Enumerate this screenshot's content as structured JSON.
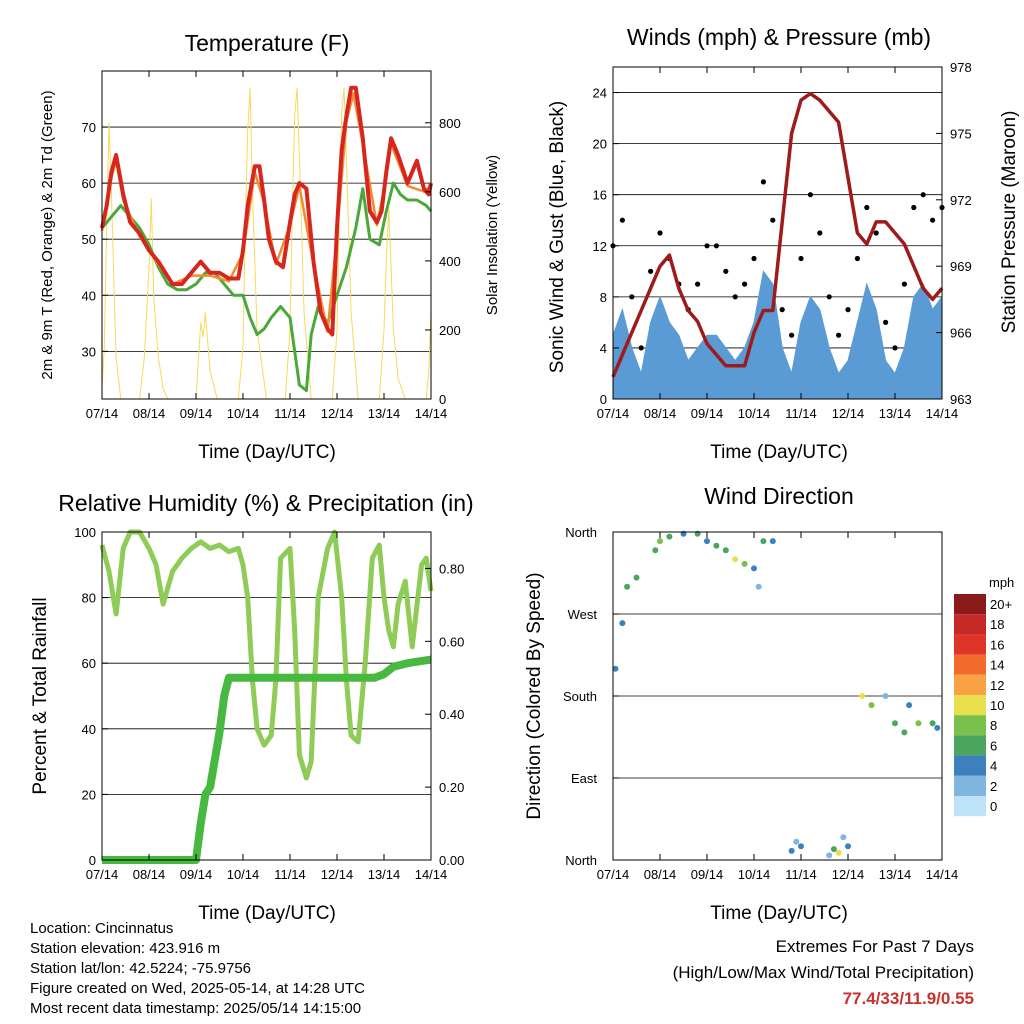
{
  "panels": {
    "temperature": {
      "title": "Temperature (F)",
      "xlabel": "Time (Day/UTC)",
      "ylabel_left": "2m & 9m T (Red, Orange) & 2m Td (Green)",
      "ylabel_right": "Solar Insolation (Yellow)"
    },
    "winds": {
      "title": "Winds (mph) & Pressure (mb)",
      "xlabel": "Time (Day/UTC)",
      "ylabel_left": "Sonic Wind & Gust (Blue, Black)",
      "ylabel_right": "Station Pressure (Maroon)"
    },
    "humidity": {
      "title": "Relative Humidity (%) & Precipitation (in)",
      "xlabel": "Time (Day/UTC)",
      "ylabel_left": "Percent & Total Rainfall"
    },
    "direction": {
      "title": "Wind Direction",
      "xlabel": "Time (Day/UTC)",
      "ylabel_left": "Direction (Colored By Speed)",
      "legend_title": "mph"
    }
  },
  "footer": {
    "location": "Location: Cincinnatus",
    "elevation": "Station elevation: 423.916 m",
    "latlon": "Station lat/lon: 42.5224; -75.9756",
    "created": "Figure created on Wed, 2025-05-14, at 14:28 UTC",
    "recent": "Most recent data timestamp: 2025/05/14 14:15:00",
    "extremes_title": "Extremes For Past 7 Days",
    "extremes_subtitle": "(High/Low/Max Wind/Total Precipitation)",
    "extremes_values": "77.4/33/11.9/0.55"
  },
  "chart_data": [
    {
      "type": "line",
      "title": "Temperature (F)",
      "xlabel": "Time (Day/UTC)",
      "ylabel": "2m & 9m T (Red, Orange) & 2m Td (Green)",
      "y2label": "Solar Insolation (Yellow)",
      "x_ticks": [
        "07/14",
        "08/14",
        "09/14",
        "10/14",
        "11/14",
        "12/14",
        "13/14",
        "14/14"
      ],
      "xlim": [
        0,
        7
      ],
      "ylim": [
        21.5,
        80
      ],
      "y_ticks": [
        30,
        40,
        50,
        60,
        70
      ],
      "y2lim": [
        0,
        950
      ],
      "y2_ticks": [
        0,
        200,
        400,
        600,
        800
      ],
      "grid": true,
      "series": [
        {
          "name": "2m T",
          "color": "#d7261e",
          "axis": "left",
          "x": [
            0,
            0.1,
            0.2,
            0.3,
            0.45,
            0.6,
            0.8,
            1.0,
            1.2,
            1.35,
            1.5,
            1.7,
            1.9,
            2.1,
            2.3,
            2.5,
            2.7,
            2.9,
            3.0,
            3.1,
            3.25,
            3.35,
            3.45,
            3.55,
            3.7,
            3.85,
            4.0,
            4.1,
            4.2,
            4.35,
            4.5,
            4.65,
            4.8,
            4.9,
            5.0,
            5.1,
            5.2,
            5.3,
            5.4,
            5.55,
            5.7,
            5.85,
            5.95,
            6.05,
            6.15,
            6.3,
            6.5,
            6.7,
            6.85,
            6.95,
            7.0
          ],
          "y": [
            52,
            56,
            62,
            65,
            58,
            53,
            51,
            48,
            46,
            44,
            42,
            42,
            44,
            46,
            44,
            44,
            43,
            43,
            48,
            56,
            63,
            63,
            57,
            50,
            46,
            45,
            53,
            58,
            60,
            59,
            46,
            37,
            34,
            33,
            52,
            66,
            72,
            77,
            77,
            68,
            55,
            53,
            55,
            62,
            68,
            65,
            60,
            64,
            59,
            58,
            60
          ]
        },
        {
          "name": "9m T",
          "color": "#f28a2e",
          "axis": "left",
          "x": [
            0,
            0.2,
            0.3,
            0.45,
            0.8,
            1.2,
            1.5,
            1.9,
            2.3,
            2.7,
            3.0,
            3.25,
            3.45,
            3.7,
            4.0,
            4.2,
            4.5,
            4.8,
            5.0,
            5.2,
            5.35,
            5.55,
            5.85,
            6.05,
            6.15,
            6.5,
            6.85,
            7.0
          ],
          "y": [
            51.5,
            61,
            64,
            57,
            50.5,
            45.5,
            42,
            43.5,
            43.5,
            42.5,
            47.5,
            62,
            56.5,
            45.5,
            52.5,
            59.5,
            45.5,
            33.5,
            51,
            71,
            76,
            67,
            52.5,
            61,
            67,
            59.5,
            58.5,
            59.5
          ]
        },
        {
          "name": "2m Td",
          "color": "#4aa83a",
          "axis": "left",
          "x": [
            0,
            0.2,
            0.4,
            0.6,
            0.8,
            1.0,
            1.2,
            1.4,
            1.6,
            1.8,
            2.0,
            2.2,
            2.4,
            2.6,
            2.8,
            3.0,
            3.15,
            3.3,
            3.45,
            3.6,
            3.8,
            4.0,
            4.1,
            4.2,
            4.35,
            4.45,
            4.6,
            4.8,
            5.0,
            5.2,
            5.4,
            5.55,
            5.7,
            5.9,
            6.05,
            6.2,
            6.35,
            6.5,
            6.7,
            6.9,
            7.0
          ],
          "y": [
            52,
            54,
            56,
            54,
            52,
            49,
            45,
            42,
            41,
            41,
            42,
            44,
            44,
            42,
            40,
            40,
            36,
            33,
            34,
            36,
            38,
            36,
            30,
            24,
            23,
            33,
            38,
            35,
            40,
            45,
            52,
            59,
            50,
            49,
            55,
            60,
            58,
            57,
            57,
            56,
            55
          ]
        },
        {
          "name": "Solar Insolation",
          "color": "#f5d95a",
          "axis": "right",
          "x": [
            0,
            0.05,
            0.1,
            0.15,
            0.2,
            0.25,
            0.3,
            0.4,
            0.5,
            0.6,
            0.8,
            0.9,
            1.0,
            1.05,
            1.1,
            1.15,
            1.2,
            1.3,
            1.4,
            1.55,
            1.8,
            2.0,
            2.1,
            2.15,
            2.2,
            2.3,
            2.45,
            2.9,
            3.0,
            3.05,
            3.1,
            3.15,
            3.2,
            3.3,
            3.5,
            3.9,
            4.0,
            4.05,
            4.1,
            4.15,
            4.2,
            4.3,
            4.45,
            4.9,
            5.0,
            5.05,
            5.1,
            5.15,
            5.2,
            5.3,
            5.45,
            5.9,
            6.0,
            6.05,
            6.1,
            6.15,
            6.2,
            6.3,
            6.45,
            6.9,
            6.95,
            7.0
          ],
          "y": [
            30,
            150,
            500,
            800,
            600,
            350,
            120,
            0,
            0,
            0,
            0,
            120,
            380,
            580,
            300,
            200,
            120,
            30,
            0,
            0,
            0,
            0,
            220,
            180,
            250,
            80,
            0,
            0,
            150,
            500,
            780,
            900,
            600,
            200,
            0,
            0,
            200,
            550,
            820,
            900,
            700,
            250,
            0,
            0,
            200,
            550,
            830,
            900,
            700,
            250,
            0,
            0,
            200,
            400,
            550,
            380,
            200,
            60,
            0,
            0,
            80,
            250
          ]
        }
      ]
    },
    {
      "type": "line",
      "title": "Winds (mph) & Pressure (mb)",
      "xlabel": "Time (Day/UTC)",
      "ylabel": "Sonic Wind & Gust (Blue, Black)",
      "y2label": "Station Pressure (Maroon)",
      "x_ticks": [
        "07/14",
        "08/14",
        "09/14",
        "10/14",
        "11/14",
        "12/14",
        "13/14",
        "14/14"
      ],
      "xlim": [
        0,
        7
      ],
      "ylim": [
        0,
        26
      ],
      "y_ticks": [
        0,
        4,
        8,
        12,
        16,
        20,
        24
      ],
      "y2lim": [
        963,
        978
      ],
      "y2_ticks": [
        963,
        966,
        969,
        972,
        975,
        978
      ],
      "grid": true,
      "series": [
        {
          "name": "Sonic Wind",
          "color": "#5b9bd5",
          "axis": "left",
          "x": [
            0,
            0.2,
            0.4,
            0.6,
            0.8,
            1.0,
            1.2,
            1.4,
            1.6,
            1.8,
            2.0,
            2.2,
            2.4,
            2.6,
            2.8,
            3.0,
            3.2,
            3.4,
            3.6,
            3.8,
            4.0,
            4.2,
            4.4,
            4.6,
            4.8,
            5.0,
            5.2,
            5.4,
            5.6,
            5.8,
            6.0,
            6.2,
            6.4,
            6.6,
            6.8,
            7.0
          ],
          "y": [
            5,
            7,
            4,
            2,
            6,
            8,
            6,
            5,
            3,
            4,
            5,
            5,
            4,
            3,
            4,
            6,
            10,
            9,
            4,
            2,
            6,
            8,
            7,
            4,
            2,
            3,
            6,
            9,
            7,
            3,
            2,
            4,
            8,
            9,
            7,
            8
          ]
        },
        {
          "name": "Gust",
          "color": "#000000",
          "axis": "left",
          "x": [
            0,
            0.2,
            0.4,
            0.6,
            0.8,
            1.0,
            1.2,
            1.4,
            1.6,
            1.8,
            2.0,
            2.2,
            2.4,
            2.6,
            2.8,
            3.0,
            3.2,
            3.4,
            3.6,
            3.8,
            4.0,
            4.2,
            4.4,
            4.6,
            4.8,
            5.0,
            5.2,
            5.4,
            5.6,
            5.8,
            6.0,
            6.2,
            6.4,
            6.6,
            6.8,
            7.0
          ],
          "y": [
            12,
            14,
            8,
            4,
            10,
            13,
            11,
            9,
            7,
            9,
            12,
            12,
            10,
            8,
            9,
            11,
            17,
            14,
            7,
            5,
            11,
            16,
            13,
            8,
            5,
            7,
            11,
            15,
            13,
            6,
            4,
            9,
            15,
            16,
            14,
            15
          ]
        },
        {
          "name": "Station Pressure",
          "color": "#9e1b1b",
          "axis": "right",
          "x": [
            0,
            0.2,
            0.4,
            0.6,
            0.8,
            1.0,
            1.2,
            1.4,
            1.6,
            1.8,
            2.0,
            2.2,
            2.4,
            2.6,
            2.8,
            3.0,
            3.2,
            3.4,
            3.6,
            3.8,
            4.0,
            4.2,
            4.4,
            4.6,
            4.8,
            5.0,
            5.2,
            5.4,
            5.6,
            5.8,
            6.0,
            6.2,
            6.4,
            6.6,
            6.8,
            7.0
          ],
          "y": [
            964,
            965,
            966,
            967,
            968,
            969,
            969.5,
            968,
            967,
            966.5,
            965.5,
            965,
            964.5,
            964.5,
            964.5,
            966,
            967,
            967,
            971,
            975,
            976.5,
            976.8,
            976.5,
            976,
            975.5,
            973,
            970.5,
            970,
            971,
            971,
            970.5,
            970,
            969,
            968,
            967.5,
            968
          ]
        }
      ]
    },
    {
      "type": "line",
      "title": "Relative Humidity (%) & Precipitation (in)",
      "xlabel": "Time (Day/UTC)",
      "ylabel": "Percent & Total Rainfall",
      "x_ticks": [
        "07/14",
        "08/14",
        "09/14",
        "10/14",
        "11/14",
        "12/14",
        "13/14",
        "14/14"
      ],
      "xlim": [
        0,
        7
      ],
      "ylim": [
        0,
        100
      ],
      "y_ticks": [
        0,
        20,
        40,
        60,
        80,
        100
      ],
      "y2lim": [
        0,
        0.9
      ],
      "y2_ticks": [
        "0.00",
        "0.20",
        "0.40",
        "0.60",
        "0.80"
      ],
      "grid": true,
      "series": [
        {
          "name": "Relative Humidity",
          "color": "#8fcb57",
          "axis": "left",
          "x": [
            0,
            0.15,
            0.3,
            0.45,
            0.6,
            0.8,
            1.0,
            1.15,
            1.3,
            1.5,
            1.7,
            1.9,
            2.1,
            2.3,
            2.5,
            2.7,
            2.9,
            3.0,
            3.1,
            3.2,
            3.3,
            3.45,
            3.6,
            3.7,
            3.8,
            4.0,
            4.1,
            4.2,
            4.35,
            4.45,
            4.6,
            4.8,
            4.95,
            5.1,
            5.2,
            5.3,
            5.45,
            5.6,
            5.75,
            5.9,
            6.0,
            6.1,
            6.2,
            6.3,
            6.45,
            6.6,
            6.8,
            6.9,
            7.0
          ],
          "y": [
            96,
            88,
            75,
            95,
            100,
            100,
            95,
            90,
            78,
            88,
            92,
            95,
            97,
            95,
            96,
            94,
            95,
            90,
            80,
            55,
            40,
            35,
            38,
            55,
            92,
            95,
            70,
            32,
            25,
            30,
            80,
            95,
            100,
            80,
            55,
            38,
            36,
            60,
            92,
            96,
            80,
            70,
            65,
            78,
            85,
            65,
            90,
            92,
            82
          ]
        },
        {
          "name": "Total Precipitation",
          "color": "#47b840",
          "axis": "right",
          "x": [
            0,
            1.0,
            2.0,
            2.1,
            2.2,
            2.3,
            2.5,
            2.6,
            2.7,
            2.8,
            3.0,
            4.0,
            5.0,
            5.8,
            6.0,
            6.2,
            6.5,
            7.0
          ],
          "y": [
            0,
            0,
            0,
            0.1,
            0.18,
            0.2,
            0.35,
            0.45,
            0.5,
            0.5,
            0.5,
            0.5,
            0.5,
            0.5,
            0.51,
            0.53,
            0.54,
            0.55
          ]
        }
      ]
    },
    {
      "type": "scatter",
      "title": "Wind Direction",
      "xlabel": "Time (Day/UTC)",
      "ylabel": "Direction (Colored By Speed)",
      "x_ticks": [
        "07/14",
        "08/14",
        "09/14",
        "10/14",
        "11/14",
        "12/14",
        "13/14",
        "14/14"
      ],
      "xlim": [
        0,
        7
      ],
      "ylim": [
        0,
        360
      ],
      "y_ticks": [
        "North",
        "East",
        "South",
        "West",
        "North"
      ],
      "legend": {
        "title": "mph",
        "labels": [
          "20+",
          "18",
          "16",
          "14",
          "12",
          "10",
          "8",
          "6",
          "4",
          "2",
          "0"
        ],
        "colors": [
          "#8b1a1a",
          "#c62828",
          "#e0342a",
          "#f26a2c",
          "#f8a243",
          "#e8e04c",
          "#79c14b",
          "#4aa65e",
          "#3d7fbf",
          "#7fb6e0",
          "#bfe3f6"
        ]
      },
      "grid": true,
      "series": [
        {
          "name": "direction",
          "x": [
            0.05,
            0.2,
            0.3,
            0.5,
            0.9,
            1.0,
            1.2,
            1.5,
            1.8,
            2.0,
            2.2,
            2.4,
            2.6,
            2.8,
            3.0,
            3.1,
            3.2,
            3.4,
            3.8,
            3.9,
            4.0,
            4.6,
            4.7,
            4.8,
            4.9,
            5.0,
            5.3,
            5.5,
            5.8,
            6.0,
            6.2,
            6.3,
            6.5,
            6.8,
            6.9
          ],
          "y": [
            210,
            260,
            300,
            310,
            340,
            350,
            355,
            358,
            358,
            350,
            345,
            340,
            330,
            325,
            320,
            300,
            350,
            350,
            10,
            20,
            15,
            5,
            12,
            8,
            25,
            15,
            180,
            170,
            180,
            150,
            140,
            170,
            150,
            150,
            145
          ],
          "speed": [
            4,
            4,
            6,
            6,
            6,
            8,
            6,
            4,
            6,
            4,
            6,
            6,
            10,
            8,
            4,
            2,
            6,
            4,
            4,
            2,
            4,
            2,
            6,
            10,
            2,
            4,
            10,
            8,
            2,
            6,
            6,
            4,
            8,
            6,
            4
          ]
        }
      ]
    }
  ]
}
